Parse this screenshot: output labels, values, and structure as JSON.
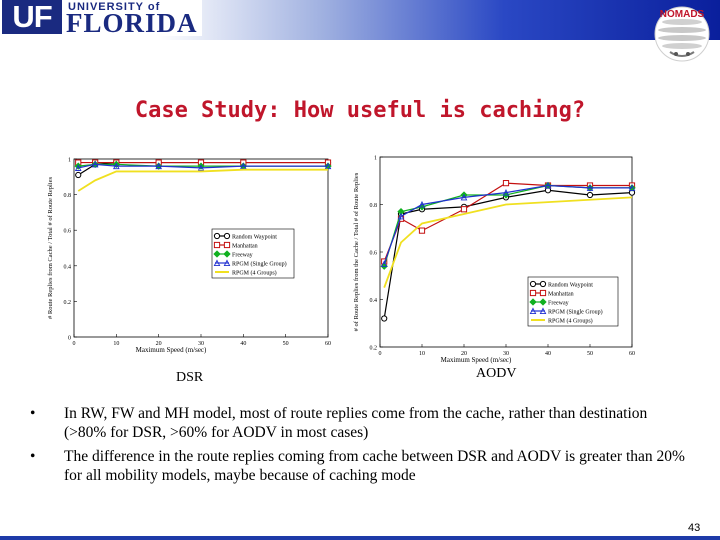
{
  "header": {
    "logo_uf": "UF",
    "logo_univ": "UNIVERSITY of",
    "logo_florida": "FLORIDA",
    "nomads_label": "NOMADS"
  },
  "title": "Case Study: How useful is caching?",
  "charts": {
    "left_caption": "DSR",
    "right_caption": "AODV"
  },
  "chart_data": [
    {
      "type": "line",
      "name": "DSR",
      "xlabel": "Maximum Speed (m/sec)",
      "ylabel": "# Route Replies from Cache / Total # of Route Replies",
      "xlim": [
        0,
        60
      ],
      "ylim": [
        0,
        1
      ],
      "xticks": [
        0,
        10,
        20,
        30,
        40,
        50,
        60
      ],
      "yticks": [
        0,
        0.2,
        0.4,
        0.6,
        0.8,
        1
      ],
      "legend_position": "center-right",
      "series": [
        {
          "name": "Random Waypoint",
          "color": "#000000",
          "marker": "circle",
          "x": [
            1,
            5,
            10,
            20,
            30,
            40,
            60
          ],
          "y": [
            0.91,
            0.97,
            0.98,
            0.98,
            0.98,
            0.98,
            0.98
          ]
        },
        {
          "name": "Manhattan",
          "color": "#c41010",
          "marker": "square",
          "x": [
            1,
            5,
            10,
            20,
            30,
            40,
            60
          ],
          "y": [
            0.98,
            0.98,
            0.98,
            0.98,
            0.98,
            0.98,
            0.98
          ]
        },
        {
          "name": "Freeway",
          "color": "#10b020",
          "marker": "diamond",
          "x": [
            1,
            5,
            10,
            20,
            30,
            40,
            60
          ],
          "y": [
            0.96,
            0.97,
            0.97,
            0.96,
            0.96,
            0.96,
            0.96
          ]
        },
        {
          "name": "RPGM (Single Group)",
          "color": "#2030d0",
          "marker": "triangle",
          "x": [
            1,
            5,
            10,
            20,
            30,
            40,
            60
          ],
          "y": [
            0.95,
            0.97,
            0.96,
            0.96,
            0.95,
            0.96,
            0.96
          ]
        },
        {
          "name": "RPGM (4 Groups)",
          "color": "#f0e020",
          "marker": "none",
          "x": [
            1,
            5,
            10,
            20,
            30,
            40,
            60
          ],
          "y": [
            0.82,
            0.88,
            0.93,
            0.93,
            0.93,
            0.94,
            0.94
          ]
        }
      ]
    },
    {
      "type": "line",
      "name": "AODV",
      "xlabel": "Maximum Speed (m/sec)",
      "ylabel": "# of Route Replies from the Cache / Total # of Route Replies",
      "xlim": [
        0,
        60
      ],
      "ylim": [
        0.2,
        1
      ],
      "xticks": [
        0,
        10,
        20,
        30,
        40,
        50,
        60
      ],
      "yticks": [
        0.2,
        0.4,
        0.6,
        0.8,
        1
      ],
      "legend_position": "bottom-right",
      "series": [
        {
          "name": "Random Waypoint",
          "color": "#000000",
          "marker": "circle",
          "x": [
            1,
            5,
            10,
            20,
            30,
            40,
            50,
            60
          ],
          "y": [
            0.32,
            0.76,
            0.78,
            0.79,
            0.83,
            0.86,
            0.84,
            0.85
          ]
        },
        {
          "name": "Manhattan",
          "color": "#c41010",
          "marker": "square",
          "x": [
            1,
            5,
            10,
            20,
            30,
            40,
            50,
            60
          ],
          "y": [
            0.56,
            0.74,
            0.69,
            0.78,
            0.89,
            0.88,
            0.88,
            0.88
          ]
        },
        {
          "name": "Freeway",
          "color": "#10b020",
          "marker": "diamond",
          "x": [
            1,
            5,
            10,
            20,
            30,
            40,
            50,
            60
          ],
          "y": [
            0.54,
            0.77,
            0.79,
            0.84,
            0.84,
            0.88,
            0.87,
            0.87
          ]
        },
        {
          "name": "RPGM (Single Group)",
          "color": "#2030d0",
          "marker": "triangle",
          "x": [
            1,
            5,
            10,
            20,
            30,
            40,
            50,
            60
          ],
          "y": [
            0.55,
            0.75,
            0.8,
            0.83,
            0.85,
            0.88,
            0.87,
            0.87
          ]
        },
        {
          "name": "RPGM (4 Groups)",
          "color": "#f0e020",
          "marker": "none",
          "x": [
            1,
            5,
            10,
            20,
            30,
            40,
            50,
            60
          ],
          "y": [
            0.45,
            0.64,
            0.72,
            0.76,
            0.8,
            0.81,
            0.82,
            0.83
          ]
        }
      ]
    }
  ],
  "bullets": [
    "In RW, FW and MH model, most of route replies come from the cache, rather than destination (>80% for DSR, >60% for AODV in most cases)",
    "The difference in the route replies coming from cache between DSR and AODV is greater than 20% for all mobility models, maybe because of caching mode"
  ],
  "bullet_symbol": "•",
  "page_number": "43"
}
